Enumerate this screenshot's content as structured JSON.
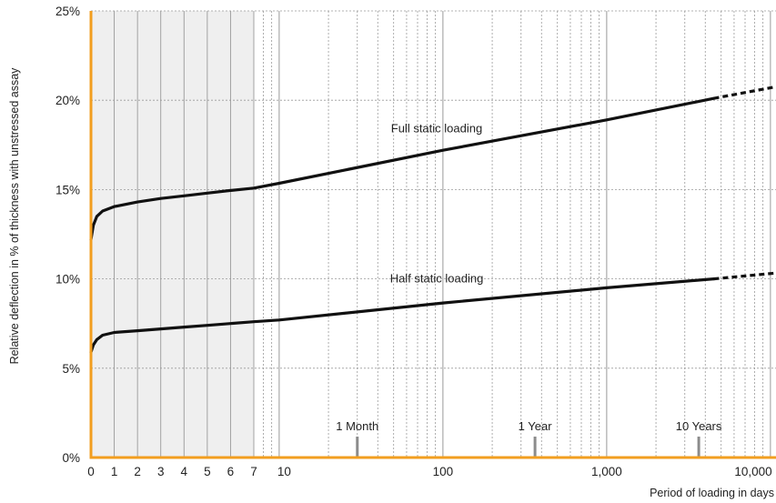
{
  "chart_data": {
    "type": "line",
    "xlabel": "Period of loading in days",
    "ylabel": "Relative deflection in % of thickness with unstressed assay",
    "x_scale": "linear from 0 to 7 days, logarithmic from 7 to 15,000 days",
    "ylim": [
      0,
      25
    ],
    "y_ticks": [
      {
        "value": 0,
        "label": "0%"
      },
      {
        "value": 5,
        "label": "5%"
      },
      {
        "value": 10,
        "label": "10%"
      },
      {
        "value": 15,
        "label": "15%"
      },
      {
        "value": 20,
        "label": "20%"
      },
      {
        "value": 25,
        "label": "25%"
      }
    ],
    "x_ticks": [
      {
        "value": 0,
        "label": "0"
      },
      {
        "value": 1,
        "label": "1"
      },
      {
        "value": 2,
        "label": "2"
      },
      {
        "value": 3,
        "label": "3"
      },
      {
        "value": 4,
        "label": "4"
      },
      {
        "value": 5,
        "label": "5"
      },
      {
        "value": 6,
        "label": "6"
      },
      {
        "value": 7,
        "label": "7"
      },
      {
        "value": 10,
        "label": "10"
      },
      {
        "value": 100,
        "label": "100"
      },
      {
        "value": 1000,
        "label": "1,000"
      },
      {
        "value": 10000,
        "label": "10,000"
      }
    ],
    "shaded_region": [
      0,
      7
    ],
    "grid": true,
    "colors": {
      "axis": "#F29E1F",
      "line": "#111111",
      "shade": "#EFEFEF",
      "grid_major": "#9a9a9a",
      "grid_minor": "#9a9a9a",
      "marker": "#8c8c8c"
    },
    "series": [
      {
        "name": "Full static loading",
        "points": [
          [
            0,
            12.2
          ],
          [
            0.1,
            13.0
          ],
          [
            0.25,
            13.5
          ],
          [
            0.5,
            13.8
          ],
          [
            1,
            14.05
          ],
          [
            2,
            14.3
          ],
          [
            3,
            14.5
          ],
          [
            4,
            14.65
          ],
          [
            5,
            14.8
          ],
          [
            6,
            14.95
          ],
          [
            7,
            15.08
          ],
          [
            10,
            15.35
          ],
          [
            100,
            17.2
          ],
          [
            1000,
            18.9
          ],
          [
            4500,
            20.1
          ]
        ],
        "dashed_points": [
          [
            4500,
            20.1
          ],
          [
            15000,
            21.0
          ]
        ]
      },
      {
        "name": "Half static loading",
        "points": [
          [
            0,
            5.9
          ],
          [
            0.1,
            6.3
          ],
          [
            0.25,
            6.6
          ],
          [
            0.5,
            6.85
          ],
          [
            1,
            7.0
          ],
          [
            2,
            7.1
          ],
          [
            3,
            7.2
          ],
          [
            4,
            7.3
          ],
          [
            5,
            7.4
          ],
          [
            6,
            7.5
          ],
          [
            7,
            7.6
          ],
          [
            10,
            7.7
          ],
          [
            100,
            8.65
          ],
          [
            1000,
            9.5
          ],
          [
            4500,
            10.0
          ]
        ],
        "dashed_points": [
          [
            4500,
            10.0
          ],
          [
            15000,
            10.45
          ]
        ]
      }
    ],
    "markers": [
      {
        "label": "1 Month",
        "x": 30
      },
      {
        "label": "1 Year",
        "x": 365
      },
      {
        "label": "10 Years",
        "x": 3650
      }
    ]
  }
}
